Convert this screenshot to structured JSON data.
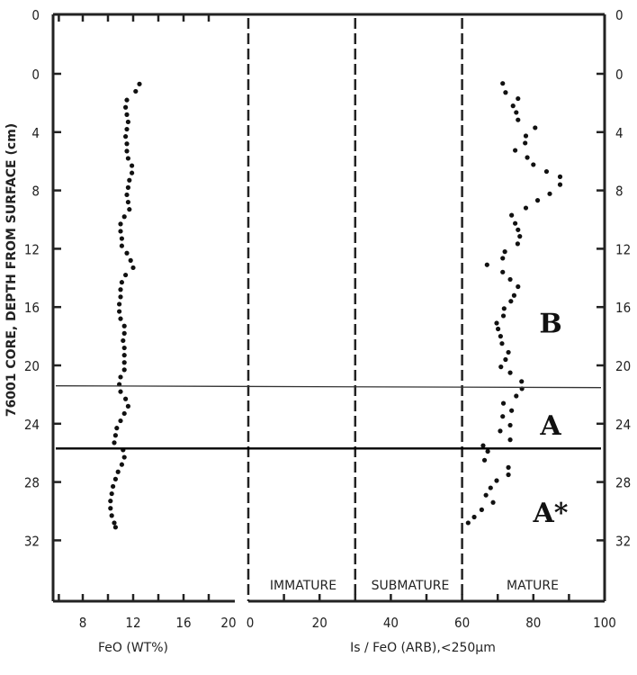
{
  "chart_data": [
    {
      "type": "scatter",
      "panel": "left",
      "xlabel": "FeO (WT%)",
      "ylabel": "76001 CORE, DEPTH FROM SURFACE (cm)",
      "xlim": [
        5.6,
        20
      ],
      "ylim": [
        0,
        36
      ],
      "xticks": [
        "8",
        "12",
        "16",
        "20"
      ],
      "yticks": [
        "0",
        "4",
        "8",
        "12",
        "16",
        "20",
        "24",
        "28",
        "32"
      ],
      "top_label": "0",
      "series": [
        {
          "name": "FeO",
          "points": [
            [
              12.5,
              0.7
            ],
            [
              12.2,
              1.2
            ],
            [
              11.5,
              1.8
            ],
            [
              11.4,
              2.3
            ],
            [
              11.5,
              2.8
            ],
            [
              11.6,
              3.3
            ],
            [
              11.5,
              3.8
            ],
            [
              11.4,
              4.3
            ],
            [
              11.5,
              4.8
            ],
            [
              11.5,
              5.3
            ],
            [
              11.6,
              5.8
            ],
            [
              11.9,
              6.3
            ],
            [
              11.9,
              6.8
            ],
            [
              11.7,
              7.3
            ],
            [
              11.6,
              7.8
            ],
            [
              11.5,
              8.3
            ],
            [
              11.6,
              8.8
            ],
            [
              11.7,
              9.3
            ],
            [
              11.3,
              9.8
            ],
            [
              11.0,
              10.3
            ],
            [
              11.0,
              10.8
            ],
            [
              11.1,
              11.3
            ],
            [
              11.1,
              11.8
            ],
            [
              11.5,
              12.3
            ],
            [
              11.8,
              12.8
            ],
            [
              12.0,
              13.3
            ],
            [
              11.4,
              13.8
            ],
            [
              11.1,
              14.3
            ],
            [
              11.0,
              14.8
            ],
            [
              11.0,
              15.3
            ],
            [
              10.9,
              15.8
            ],
            [
              10.9,
              16.3
            ],
            [
              11.0,
              16.8
            ],
            [
              11.3,
              17.3
            ],
            [
              11.3,
              17.8
            ],
            [
              11.2,
              18.3
            ],
            [
              11.3,
              18.8
            ],
            [
              11.3,
              19.3
            ],
            [
              11.3,
              19.8
            ],
            [
              11.3,
              20.3
            ],
            [
              11.0,
              20.8
            ],
            [
              10.9,
              21.3
            ],
            [
              11.0,
              21.8
            ],
            [
              11.4,
              22.3
            ],
            [
              11.6,
              22.8
            ],
            [
              11.3,
              23.3
            ],
            [
              11.0,
              23.8
            ],
            [
              10.7,
              24.3
            ],
            [
              10.6,
              24.8
            ],
            [
              10.5,
              25.3
            ],
            [
              11.2,
              25.8
            ],
            [
              11.3,
              26.3
            ],
            [
              11.1,
              26.8
            ],
            [
              10.8,
              27.3
            ],
            [
              10.6,
              27.8
            ],
            [
              10.4,
              28.3
            ],
            [
              10.3,
              28.8
            ],
            [
              10.2,
              29.3
            ],
            [
              10.2,
              29.8
            ],
            [
              10.3,
              30.3
            ],
            [
              10.5,
              30.8
            ],
            [
              10.6,
              31.1
            ]
          ]
        }
      ]
    },
    {
      "type": "scatter",
      "panel": "right",
      "xlabel": "Is / FeO (ARB),<250µm",
      "xlim": [
        0,
        100
      ],
      "ylim": [
        0,
        36
      ],
      "xticks": [
        "0",
        "20",
        "40",
        "60",
        "80",
        "100"
      ],
      "yticks": [
        "0",
        "4",
        "8",
        "12",
        "16",
        "20",
        "24",
        "28",
        "32"
      ],
      "top_label": "0",
      "zones": [
        {
          "name": "IMMATURE",
          "range": [
            0,
            30
          ]
        },
        {
          "name": "SUBMATURE",
          "range": [
            30,
            60
          ]
        },
        {
          "name": "MATURE",
          "range": [
            60,
            100
          ]
        }
      ],
      "series": [
        {
          "name": "Is/FeO",
          "points": [
            [
              71.4,
              0.66
            ],
            [
              72.2,
              1.28
            ],
            [
              75.7,
              1.7
            ],
            [
              74.3,
              2.2
            ],
            [
              75.2,
              2.65
            ],
            [
              75.7,
              3.16
            ],
            [
              80.5,
              3.7
            ],
            [
              77.9,
              4.26
            ],
            [
              77.7,
              4.75
            ],
            [
              74.9,
              5.25
            ],
            [
              78.3,
              5.74
            ],
            [
              80.0,
              6.23
            ],
            [
              83.7,
              6.7
            ],
            [
              87.5,
              7.06
            ],
            [
              87.5,
              7.6
            ],
            [
              84.6,
              8.23
            ],
            [
              81.2,
              8.68
            ],
            [
              77.9,
              9.2
            ],
            [
              73.9,
              9.7
            ],
            [
              74.9,
              10.26
            ],
            [
              75.7,
              10.7
            ],
            [
              76.2,
              11.15
            ],
            [
              75.6,
              11.66
            ],
            [
              72.0,
              12.2
            ],
            [
              71.4,
              12.65
            ],
            [
              67.0,
              13.1
            ],
            [
              71.4,
              13.6
            ],
            [
              73.5,
              14.1
            ],
            [
              75.7,
              14.6
            ],
            [
              74.6,
              15.2
            ],
            [
              73.7,
              15.6
            ],
            [
              71.8,
              16.1
            ],
            [
              71.6,
              16.6
            ],
            [
              69.7,
              17.1
            ],
            [
              70.1,
              17.5
            ],
            [
              70.8,
              18.0
            ],
            [
              71.2,
              18.5
            ],
            [
              73.0,
              19.1
            ],
            [
              72.2,
              19.6
            ],
            [
              70.9,
              20.1
            ],
            [
              73.5,
              20.5
            ],
            [
              76.7,
              21.1
            ],
            [
              76.8,
              21.6
            ],
            [
              75.2,
              22.1
            ],
            [
              71.6,
              22.6
            ],
            [
              73.9,
              23.1
            ],
            [
              71.4,
              23.5
            ],
            [
              73.5,
              24.1
            ],
            [
              70.7,
              24.5
            ],
            [
              73.5,
              25.1
            ],
            [
              65.9,
              25.5
            ],
            [
              67.2,
              25.9
            ],
            [
              66.3,
              26.5
            ],
            [
              73.0,
              27.0
            ],
            [
              73.0,
              27.5
            ],
            [
              69.7,
              27.9
            ],
            [
              68.0,
              28.4
            ],
            [
              66.7,
              28.9
            ],
            [
              68.7,
              29.4
            ],
            [
              65.5,
              29.9
            ],
            [
              63.4,
              30.4
            ],
            [
              61.7,
              30.8
            ]
          ]
        }
      ]
    }
  ],
  "unit_boundaries": [
    {
      "depth": 21.4,
      "style": "thin"
    },
    {
      "depth": 25.7,
      "style": "thick"
    }
  ],
  "unit_labels": [
    {
      "text": "B",
      "depth": 17
    },
    {
      "text": "A",
      "depth": 24
    },
    {
      "text": "A*",
      "depth": 30
    }
  ]
}
